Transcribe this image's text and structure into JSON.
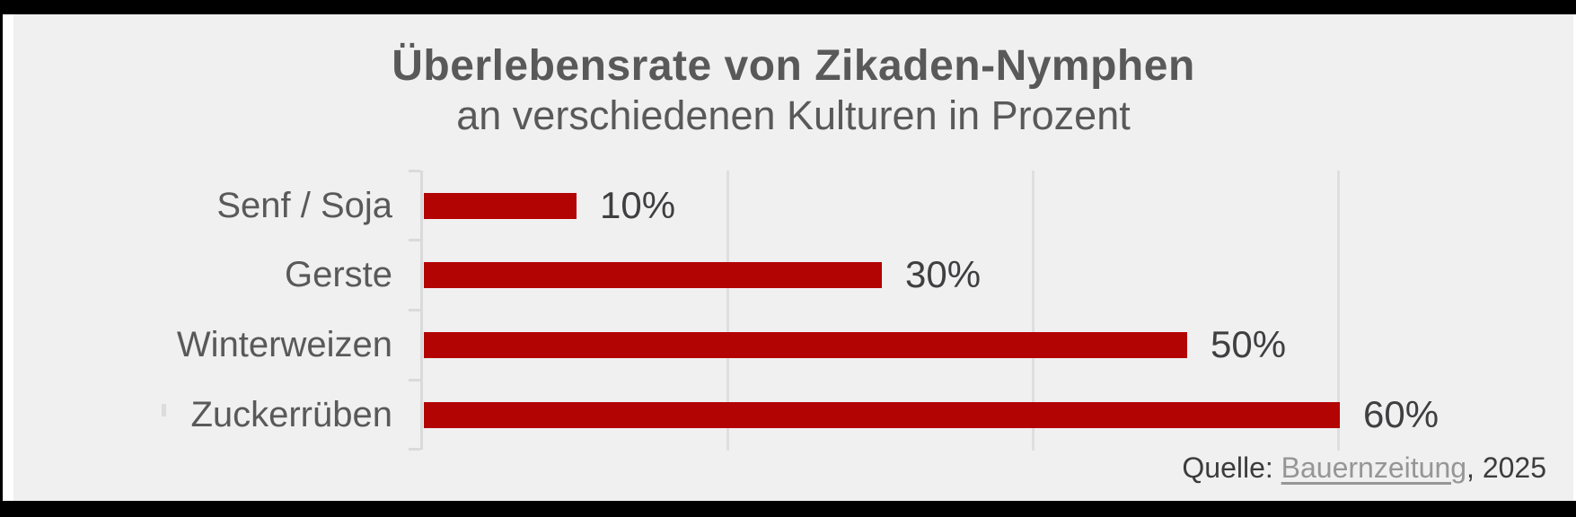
{
  "title": {
    "line1": "Überlebensrate von Zikaden-Nymphen",
    "line2": "an verschiedenen Kulturen in Prozent"
  },
  "chart_data": {
    "type": "bar",
    "orientation": "horizontal",
    "title": "Überlebensrate von Zikaden-Nymphen an verschiedenen Kulturen in Prozent",
    "categories": [
      "Senf / Soja",
      "Gerste",
      "Winterweizen",
      "Zuckerrüben"
    ],
    "values": [
      10,
      30,
      50,
      60
    ],
    "value_labels": [
      "10%",
      "30%",
      "50%",
      "60%"
    ],
    "xlabel": "",
    "ylabel": "",
    "xlim": [
      0,
      74
    ],
    "gridline_values": [
      20,
      40,
      60
    ],
    "grid": "vertical-lines-on",
    "legend": "none",
    "bar_color": "#b30404",
    "grid_color": "#dedfe0",
    "axis_color": "#d9dadb"
  },
  "source": {
    "prefix": "Quelle: ",
    "link_text": "Bauernzeitung",
    "suffix": ", 2025"
  },
  "colors": {
    "background": "#f0f0f1",
    "frame": "#000000",
    "title_text": "#595959",
    "category_text": "#595959",
    "value_text": "#3f3f41",
    "source_text": "#3c3c3c",
    "source_link": "#969696"
  }
}
